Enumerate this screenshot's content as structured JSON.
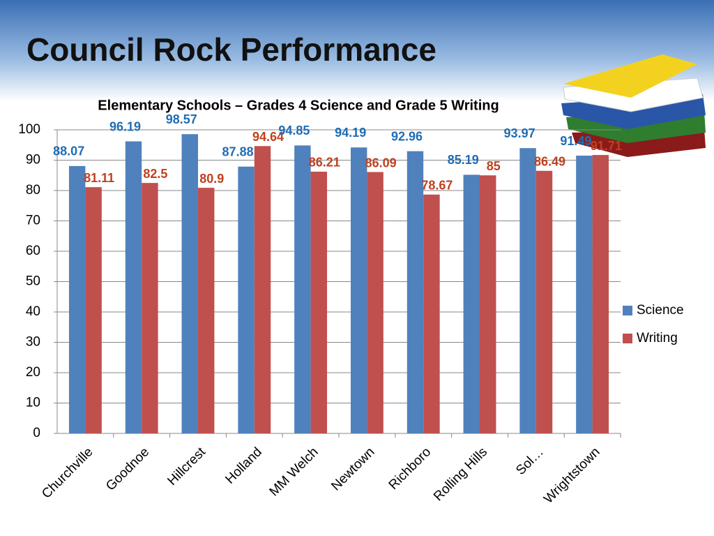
{
  "slide_title": "Council Rock Performance",
  "chart_data": {
    "type": "bar",
    "title": "Elementary Schools – Grades 4 Science and Grade 5 Writing",
    "categories": [
      "Churchville",
      "Goodnoe",
      "Hillcrest",
      "Holland",
      "MM Welch",
      "Newtown",
      "Richboro",
      "Rolling Hills",
      "Sol…",
      "Wrightstown"
    ],
    "series": [
      {
        "name": "Science",
        "color": "#4f81bd",
        "label_color": "#1f6db4",
        "values": [
          88.07,
          96.19,
          98.57,
          87.88,
          94.85,
          94.19,
          92.96,
          85.19,
          93.97,
          91.49
        ]
      },
      {
        "name": "Writing",
        "color": "#c0504d",
        "label_color": "#c0401f",
        "values": [
          81.11,
          82.5,
          80.9,
          94.64,
          86.21,
          86.09,
          78.67,
          85,
          86.49,
          91.71
        ]
      }
    ],
    "ylim": [
      0,
      100
    ],
    "yticks": [
      0,
      10,
      20,
      30,
      40,
      50,
      60,
      70,
      80,
      90,
      100
    ],
    "grid": true,
    "legend": "right"
  }
}
